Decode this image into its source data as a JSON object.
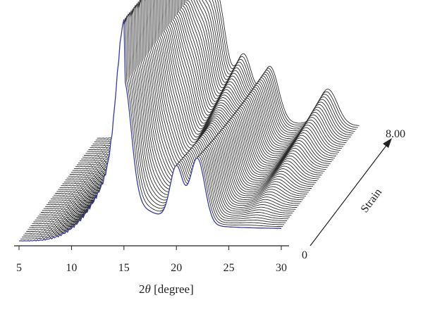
{
  "chart_data": {
    "type": "waterfall",
    "title": "",
    "xlabel_prefix": "2",
    "xlabel_symbol": "θ",
    "xlabel_suffix": " [degree]",
    "x_ticks": [
      "5",
      "10",
      "15",
      "20",
      "25",
      "30"
    ],
    "xlim": [
      5,
      30
    ],
    "depth_axis": {
      "label": "Strain",
      "start_label": "0",
      "end_label": "8.00",
      "range": [
        0,
        8.0
      ]
    },
    "n_traces": 55,
    "first_trace_color": "#3a3aa0",
    "trace_color": "#2a2a2a",
    "peaks_first_trace": [
      {
        "x": 15.0,
        "height": 0.95
      },
      {
        "x": 20.0,
        "height": 0.45
      },
      {
        "x": 22.0,
        "height": 0.55
      }
    ],
    "peaks_last_trace": [
      {
        "x": 15.0,
        "height": 0.75
      },
      {
        "x": 16.5,
        "height": 0.85
      },
      {
        "x": 19.0,
        "height": 0.5
      },
      {
        "x": 21.5,
        "height": 0.45
      },
      {
        "x": 27.0,
        "height": 0.3
      }
    ]
  }
}
